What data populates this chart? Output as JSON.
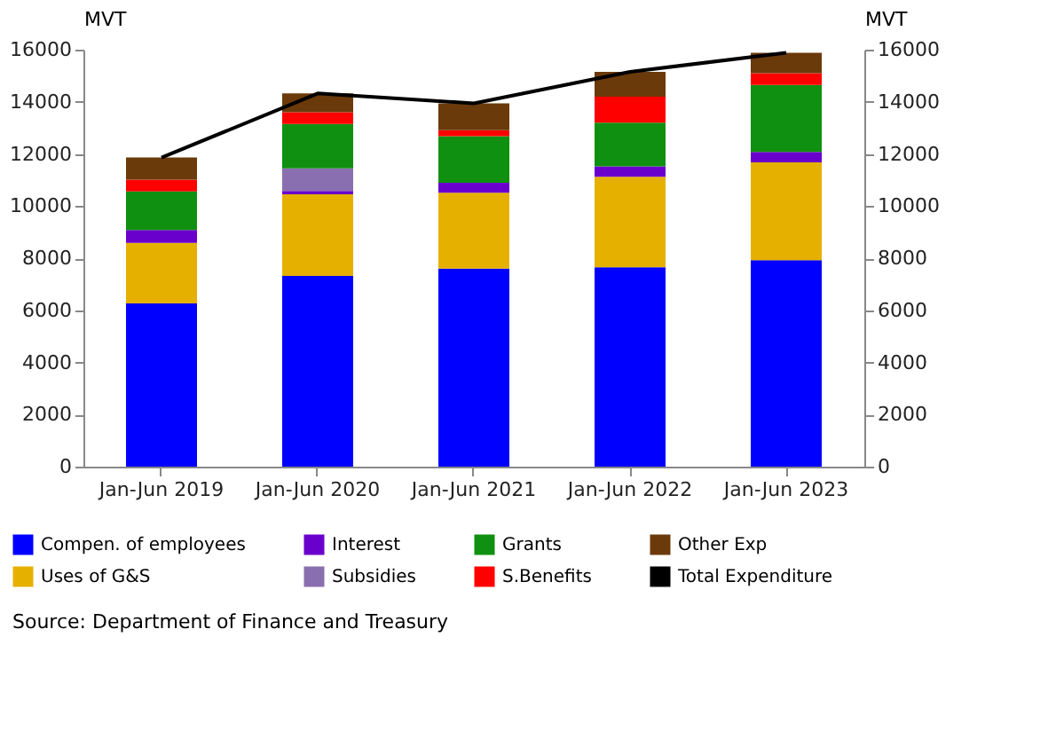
{
  "chart_data": {
    "type": "bar",
    "stacked": true,
    "ylabel": "MVT",
    "y2label": "MVT",
    "categories": [
      "Jan-Jun 2019",
      "Jan-Jun 2020",
      "Jan-Jun 2021",
      "Jan-Jun 2022",
      "Jan-Jun 2023"
    ],
    "series": [
      {
        "name": "Compen. of employees",
        "color": "#0000ff",
        "values": [
          6260,
          7320,
          7600,
          7650,
          7920
        ]
      },
      {
        "name": "Uses of G&S",
        "color": "#e6b000",
        "values": [
          2330,
          3130,
          2910,
          3470,
          3760
        ]
      },
      {
        "name": "Interest",
        "color": "#6a00cc",
        "values": [
          490,
          130,
          380,
          400,
          400
        ]
      },
      {
        "name": "Subsidies",
        "color": "#8a6fb0",
        "values": [
          0,
          870,
          0,
          0,
          0
        ]
      },
      {
        "name": "Grants",
        "color": "#109010",
        "values": [
          1480,
          1700,
          1790,
          1680,
          2570
        ]
      },
      {
        "name": "S.Benefits",
        "color": "#ff0000",
        "values": [
          450,
          450,
          230,
          1000,
          450
        ]
      },
      {
        "name": "Other Exp",
        "color": "#6b3a0a",
        "values": [
          850,
          720,
          1030,
          950,
          780
        ]
      },
      {
        "name": "Total Expenditure",
        "type": "line",
        "axis": "y2",
        "color": "#000000",
        "values": [
          11860,
          14320,
          13940,
          15150,
          15880
        ]
      }
    ],
    "ylim": [
      0,
      16000
    ],
    "yticks": [
      0,
      2000,
      4000,
      6000,
      8000,
      10000,
      12000,
      14000,
      16000
    ],
    "y2lim": [
      0,
      16000
    ],
    "y2ticks": [
      0,
      2000,
      4000,
      6000,
      8000,
      10000,
      12000,
      14000,
      16000
    ],
    "grid": false,
    "legend": "bottom",
    "marker": "none",
    "annotations": [
      "Source: Department of Finance and Treasury"
    ]
  }
}
